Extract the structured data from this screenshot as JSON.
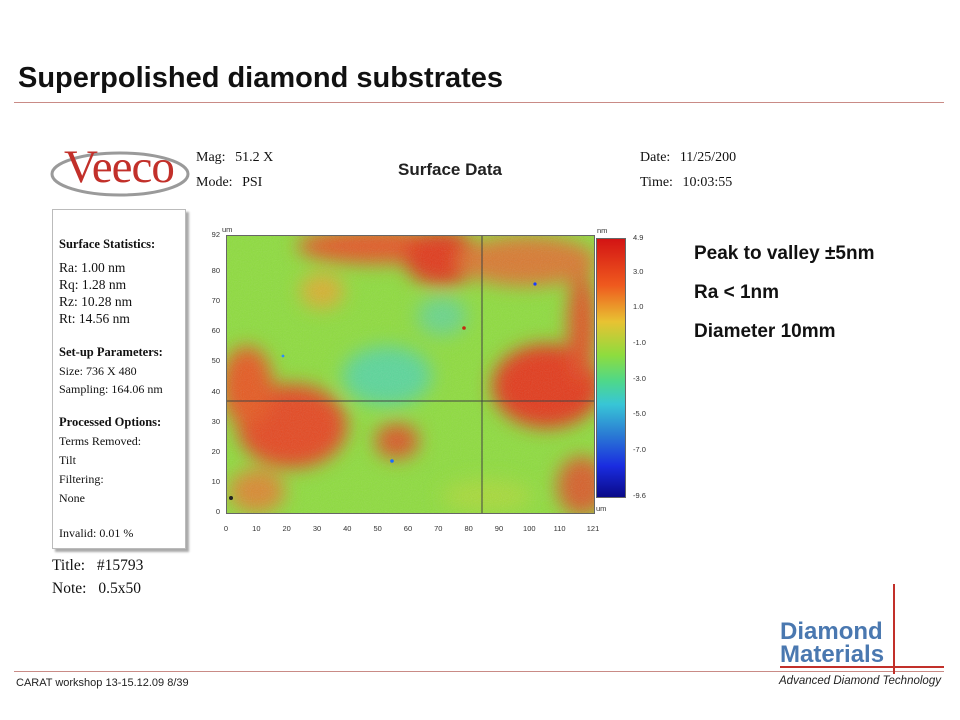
{
  "slide": {
    "title": "Superpolished diamond substrates",
    "bullets": [
      "Peak to valley ±5nm",
      "Ra < 1nm",
      "Diameter 10mm"
    ],
    "footer": "CARAT workshop 13-15.12.09 8/39"
  },
  "report": {
    "logo_text": "Veeco",
    "mag_label": "Mag:",
    "mag_value": "51.2 X",
    "mode_label": "Mode:",
    "mode_value": "PSI",
    "date_label": "Date:",
    "date_value": "11/25/200",
    "time_label": "Time:",
    "time_value": "10:03:55",
    "heading": "Surface Data",
    "stats": {
      "heading": "Surface Statistics:",
      "ra": "Ra:  1.00 nm",
      "rq": "Rq:  1.28 nm",
      "rz": "Rz:  10.28 nm",
      "rt": "Rt:  14.56 nm",
      "setup_heading": "Set-up Parameters:",
      "size": "Size: 736 X 480",
      "sampling": "Sampling:  164.06 nm",
      "proc_heading": "Processed Options:",
      "terms": "Terms Removed:",
      "tilt": "Tilt",
      "filtering": "Filtering:",
      "none": "None",
      "invalid": "Invalid:  0.01 %"
    },
    "title_label": "Title:",
    "title_value": "#15793",
    "note_label": "Note:",
    "note_value": "0.5x50"
  },
  "map": {
    "x_unit": "um",
    "y_unit": "um",
    "x_ticks": [
      "0",
      "10",
      "20",
      "30",
      "40",
      "50",
      "60",
      "70",
      "80",
      "90",
      "100",
      "110",
      "121"
    ],
    "y_ticks": [
      "92",
      "80",
      "70",
      "60",
      "50",
      "40",
      "30",
      "20",
      "10",
      "0"
    ],
    "scale_unit": "nm",
    "scale_ticks": [
      "4.9",
      "3.0",
      "1.0",
      "-1.0",
      "-3.0",
      "-5.0",
      "-7.0",
      "-9.6"
    ]
  },
  "brand": {
    "line1": "Diamond",
    "line2": "Materials",
    "tagline": "Advanced Diamond Technology"
  },
  "colors": {
    "accent": "#c2302a",
    "brand_blue": "#4a78b0"
  }
}
